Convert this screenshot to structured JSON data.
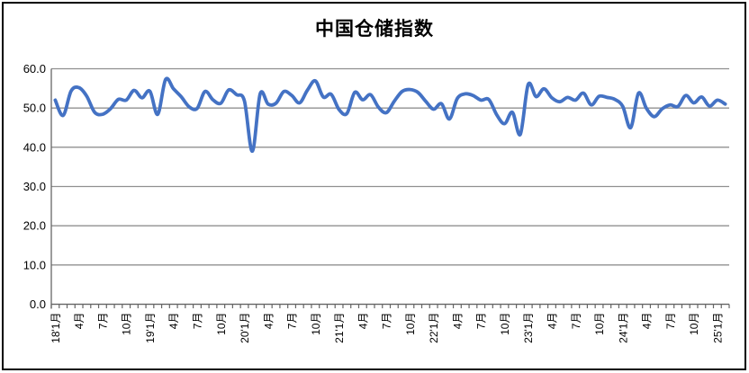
{
  "chart_data": {
    "type": "line",
    "title": "中国仓储指数",
    "legend": "none",
    "grid": "horizontal",
    "ylim": [
      0,
      60
    ],
    "y_tick_labels": [
      "0.0",
      "10.0",
      "20.0",
      "30.0",
      "40.0",
      "50.0",
      "60.0"
    ],
    "x_start_month": "2018-01",
    "x_end_month": "2025-02",
    "x_tick_label_every_months": 3,
    "x_tick_labels": [
      "18'1月",
      "4月",
      "7月",
      "10月",
      "19'1月",
      "4月",
      "7月",
      "10月",
      "20'1月",
      "4月",
      "7月",
      "10月",
      "21'1月",
      "4月",
      "7月",
      "10月",
      "22'1月",
      "4月",
      "7月",
      "10月",
      "23'1月",
      "4月",
      "7月",
      "10月",
      "24'1月",
      "4月",
      "7月",
      "10月",
      "25'1月"
    ],
    "series": [
      {
        "name": "中国仓储指数",
        "color": "#4472C4",
        "values": [
          52.0,
          48.1,
          54.3,
          55.2,
          53.0,
          48.9,
          48.4,
          49.8,
          52.2,
          52.0,
          54.5,
          52.6,
          54.3,
          48.4,
          57.3,
          54.9,
          52.8,
          50.3,
          49.9,
          54.2,
          52.1,
          51.2,
          54.6,
          53.4,
          51.8,
          39.0,
          53.6,
          51.0,
          51.2,
          54.2,
          53.2,
          51.3,
          54.6,
          56.9,
          52.8,
          53.5,
          49.6,
          48.6,
          54.0,
          52.1,
          53.4,
          50.2,
          48.8,
          51.7,
          54.2,
          54.7,
          54.0,
          51.7,
          49.7,
          51.1,
          47.2,
          52.4,
          53.6,
          53.2,
          52.0,
          52.2,
          48.3,
          46.0,
          48.9,
          43.3,
          56.0,
          52.9,
          54.9,
          52.6,
          51.6,
          52.7,
          52.0,
          53.8,
          50.8,
          53.0,
          52.7,
          52.2,
          50.4,
          45.0,
          53.8,
          49.9,
          47.8,
          49.8,
          50.8,
          50.4,
          53.2,
          51.3,
          52.8,
          50.5,
          52.0,
          51.0
        ]
      }
    ],
    "colors": {
      "line": "#4472C4",
      "gridline": "#909090",
      "axis": "#666666",
      "text": "#000000",
      "frame": "#000000",
      "background": "#ffffff"
    }
  }
}
